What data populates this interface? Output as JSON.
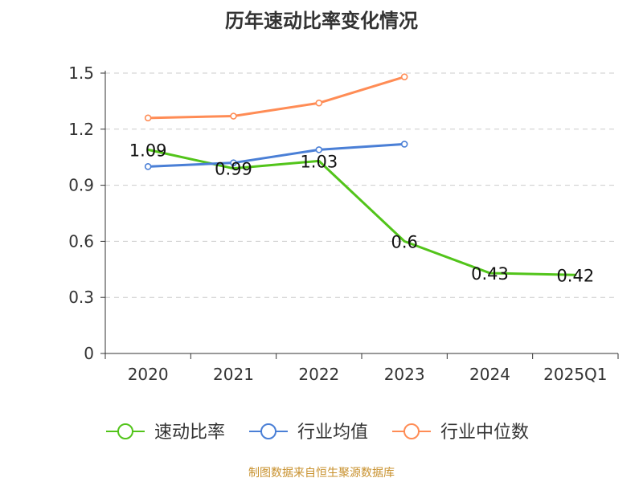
{
  "chart_data": {
    "type": "line",
    "title": "历年速动比率变化情况",
    "categories": [
      "2020",
      "2021",
      "2022",
      "2023",
      "2024",
      "2025Q1"
    ],
    "ylim": [
      0,
      1.5
    ],
    "yticks": [
      "0",
      "0.3",
      "0.6",
      "0.9",
      "1.2",
      "1.5"
    ],
    "ytick_values": [
      0,
      0.3,
      0.6,
      0.9,
      1.2,
      1.5
    ],
    "grid": true,
    "legend_position": "bottom",
    "series": [
      {
        "name": "速动比率",
        "color": "#52c41a",
        "values": [
          1.09,
          0.99,
          1.03,
          0.6,
          0.43,
          0.42
        ],
        "labels": [
          "1.09",
          "0.99",
          "1.03",
          "0.6",
          "0.43",
          "0.42"
        ],
        "show_labels": true,
        "markers": false
      },
      {
        "name": "行业均值",
        "color": "#4a7fd6",
        "values": [
          1.0,
          1.02,
          1.09,
          1.12,
          null,
          null
        ],
        "show_labels": false,
        "markers": true
      },
      {
        "name": "行业中位数",
        "color": "#ff8c55",
        "values": [
          1.26,
          1.27,
          1.34,
          1.48,
          null,
          null
        ],
        "show_labels": false,
        "markers": true
      }
    ]
  },
  "footer": {
    "source": "制图数据来自恒生聚源数据库"
  }
}
